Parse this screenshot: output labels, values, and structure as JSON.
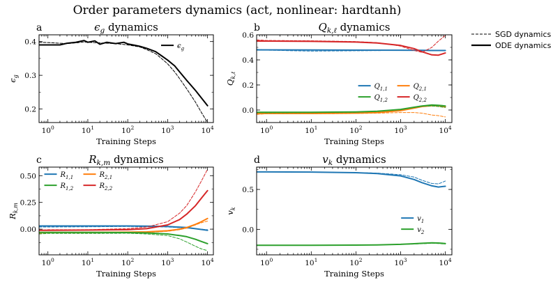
{
  "figure_title": "Order parameters dynamics (act, nonlinear: hardtanh)",
  "legend_top": {
    "dashed": "SGD dynamics",
    "solid": "ODE dynamics"
  },
  "chart_data": [
    {
      "id": "a",
      "type": "line",
      "letter": "a",
      "title": "ϵ_g dynamics",
      "title_parts": {
        "main": "ϵ",
        "sub": "g",
        "rest": " dynamics"
      },
      "xlabel": "Training Steps",
      "ylabel": "ϵ_g",
      "ylabel_parts": {
        "main": "ϵ",
        "sub": "g"
      },
      "xscale": "log",
      "xlim": [
        0.6,
        14000
      ],
      "ylim": [
        0.16,
        0.42
      ],
      "yticks": [
        0.2,
        0.3,
        0.4
      ],
      "ytick_labels": [
        "0.2",
        "0.3",
        "0.4"
      ],
      "xtick_labels": [
        "10^0",
        "10^1",
        "10^2",
        "10^3",
        "10^4"
      ],
      "legend": [
        {
          "label": "ϵ_g",
          "main": "ϵ",
          "sub": "g",
          "color": "#000000"
        }
      ],
      "series": [
        {
          "name": "ϵ_g ODE",
          "style": "solid",
          "color": "#000000",
          "width": 2,
          "x": [
            0.6,
            1,
            2,
            3,
            5,
            8,
            10,
            15,
            20,
            30,
            50,
            80,
            100,
            150,
            200,
            300,
            500,
            700,
            1000,
            1500,
            2000,
            3000,
            5000,
            7000,
            10000
          ],
          "y": [
            0.39,
            0.39,
            0.39,
            0.395,
            0.398,
            0.403,
            0.398,
            0.402,
            0.392,
            0.398,
            0.394,
            0.398,
            0.393,
            0.389,
            0.386,
            0.38,
            0.37,
            0.358,
            0.345,
            0.328,
            0.31,
            0.285,
            0.255,
            0.233,
            0.21
          ]
        },
        {
          "name": "ϵ_g SGD",
          "style": "dashed",
          "color": "#000000",
          "width": 1,
          "x": [
            0.6,
            1,
            2,
            3,
            5,
            8,
            10,
            20,
            50,
            100,
            200,
            300,
            500,
            700,
            1000,
            1500,
            2000,
            3000,
            5000,
            7000,
            10000
          ],
          "y": [
            0.398,
            0.397,
            0.395,
            0.394,
            0.396,
            0.399,
            0.398,
            0.396,
            0.394,
            0.39,
            0.384,
            0.376,
            0.364,
            0.35,
            0.334,
            0.31,
            0.29,
            0.26,
            0.22,
            0.19,
            0.16
          ]
        }
      ]
    },
    {
      "id": "b",
      "type": "line",
      "letter": "b",
      "title": "Q_{k,ℓ} dynamics",
      "title_parts": {
        "main": "Q",
        "sub": "k,ℓ",
        "rest": " dynamics"
      },
      "xlabel": "Training Steps",
      "ylabel": "Q_{k,ℓ}",
      "ylabel_parts": {
        "main": "Q",
        "sub": "k,ℓ"
      },
      "xscale": "log",
      "xlim": [
        0.6,
        14000
      ],
      "ylim": [
        -0.1,
        0.6
      ],
      "yticks": [
        0.0,
        0.2,
        0.4,
        0.6
      ],
      "ytick_labels": [
        "0.0",
        "0.2",
        "0.4",
        "0.6"
      ],
      "xtick_labels": [
        "10^0",
        "10^1",
        "10^2",
        "10^3",
        "10^4"
      ],
      "legend": [
        {
          "label": "Q_{1,1}",
          "main": "Q",
          "sub": "1,1",
          "color": "#1f77b4"
        },
        {
          "label": "Q_{2,1}",
          "main": "Q",
          "sub": "2,1",
          "color": "#ff7f0e"
        },
        {
          "label": "Q_{1,2}",
          "main": "Q",
          "sub": "1,2",
          "color": "#2ca02c"
        },
        {
          "label": "Q_{2,2}",
          "main": "Q",
          "sub": "2,2",
          "color": "#d62728"
        }
      ],
      "series": [
        {
          "name": "Q11 ODE",
          "style": "solid",
          "color": "#1f77b4",
          "width": 2,
          "x": [
            0.6,
            1,
            10,
            100,
            1000,
            3000,
            5000,
            10000
          ],
          "y": [
            0.48,
            0.48,
            0.479,
            0.478,
            0.477,
            0.476,
            0.475,
            0.475
          ]
        },
        {
          "name": "Q11 SGD",
          "style": "dashed",
          "color": "#1f77b4",
          "width": 1,
          "x": [
            0.6,
            1,
            10,
            100,
            1000,
            3000,
            5000,
            10000
          ],
          "y": [
            0.485,
            0.478,
            0.47,
            0.473,
            0.476,
            0.476,
            0.472,
            0.478
          ]
        },
        {
          "name": "Q21 ODE",
          "style": "solid",
          "color": "#ff7f0e",
          "width": 2,
          "x": [
            0.6,
            1,
            10,
            100,
            300,
            1000,
            2000,
            3000,
            5000,
            7000,
            10000
          ],
          "y": [
            -0.028,
            -0.028,
            -0.028,
            -0.025,
            -0.02,
            -0.005,
            0.015,
            0.028,
            0.035,
            0.033,
            0.025
          ]
        },
        {
          "name": "Q21 SGD",
          "style": "dashed",
          "color": "#ff7f0e",
          "width": 1,
          "x": [
            0.6,
            1,
            10,
            100,
            300,
            1000,
            2000,
            3000,
            5000,
            7000,
            10000
          ],
          "y": [
            -0.035,
            -0.03,
            -0.03,
            -0.028,
            -0.025,
            -0.02,
            -0.02,
            -0.025,
            -0.04,
            -0.045,
            -0.055
          ]
        },
        {
          "name": "Q12 ODE",
          "style": "solid",
          "color": "#2ca02c",
          "width": 2,
          "x": [
            0.6,
            1,
            10,
            100,
            300,
            1000,
            2000,
            3000,
            5000,
            7000,
            10000
          ],
          "y": [
            -0.018,
            -0.018,
            -0.018,
            -0.015,
            -0.01,
            0.005,
            0.022,
            0.032,
            0.04,
            0.038,
            0.032
          ]
        },
        {
          "name": "Q12 SGD",
          "style": "dashed",
          "color": "#2ca02c",
          "width": 1,
          "x": [
            0.6,
            1,
            10,
            100,
            300,
            1000,
            2000,
            3000,
            5000,
            7000,
            10000
          ],
          "y": [
            -0.02,
            -0.022,
            -0.02,
            -0.018,
            -0.012,
            0.005,
            0.02,
            0.03,
            0.032,
            0.028,
            0.02
          ]
        },
        {
          "name": "Q22 ODE",
          "style": "solid",
          "color": "#d62728",
          "width": 2,
          "x": [
            0.6,
            1,
            10,
            100,
            300,
            1000,
            2000,
            3000,
            5000,
            7000,
            10000
          ],
          "y": [
            0.55,
            0.55,
            0.548,
            0.542,
            0.535,
            0.515,
            0.49,
            0.465,
            0.44,
            0.438,
            0.455
          ]
        },
        {
          "name": "Q22 SGD",
          "style": "dashed",
          "color": "#d62728",
          "width": 1,
          "x": [
            0.6,
            1,
            10,
            100,
            300,
            1000,
            2000,
            3000,
            5000,
            7000,
            10000
          ],
          "y": [
            0.56,
            0.555,
            0.552,
            0.546,
            0.538,
            0.51,
            0.475,
            0.46,
            0.5,
            0.55,
            0.595
          ]
        }
      ]
    },
    {
      "id": "c",
      "type": "line",
      "letter": "c",
      "title": "R_{k,m} dynamics",
      "title_parts": {
        "main": "R",
        "sub": "k,m",
        "rest": " dynamics"
      },
      "xlabel": "Training Steps",
      "ylabel": "R_{k,m}",
      "ylabel_parts": {
        "main": "R",
        "sub": "k,m"
      },
      "xscale": "log",
      "xlim": [
        0.6,
        14000
      ],
      "ylim": [
        -0.24,
        0.58
      ],
      "yticks": [
        0.0,
        0.25,
        0.5
      ],
      "ytick_labels": [
        "0.00",
        "0.25",
        "0.50"
      ],
      "xtick_labels": [
        "10^0",
        "10^1",
        "10^2",
        "10^3",
        "10^4"
      ],
      "legend": [
        {
          "label": "R_{1,1}",
          "main": "R",
          "sub": "1,1",
          "color": "#1f77b4"
        },
        {
          "label": "R_{2,1}",
          "main": "R",
          "sub": "2,1",
          "color": "#ff7f0e"
        },
        {
          "label": "R_{1,2}",
          "main": "R",
          "sub": "1,2",
          "color": "#2ca02c"
        },
        {
          "label": "R_{2,2}",
          "main": "R",
          "sub": "2,2",
          "color": "#d62728"
        }
      ],
      "series": [
        {
          "name": "R11 ODE",
          "style": "solid",
          "color": "#1f77b4",
          "width": 2,
          "x": [
            0.6,
            1,
            10,
            100,
            300,
            1000,
            3000,
            10000
          ],
          "y": [
            0.03,
            0.03,
            0.03,
            0.03,
            0.029,
            0.025,
            0.015,
            -0.01
          ]
        },
        {
          "name": "R11 SGD",
          "style": "dashed",
          "color": "#1f77b4",
          "width": 1,
          "x": [
            0.6,
            1,
            10,
            100,
            300,
            1000,
            3000,
            10000
          ],
          "y": [
            0.02,
            0.02,
            0.022,
            0.025,
            0.022,
            0.02,
            0.01,
            -0.005
          ]
        },
        {
          "name": "R21 ODE",
          "style": "solid",
          "color": "#ff7f0e",
          "width": 2,
          "x": [
            0.6,
            1,
            10,
            100,
            300,
            1000,
            2000,
            3000,
            5000,
            7000,
            10000
          ],
          "y": [
            -0.03,
            -0.03,
            -0.03,
            -0.028,
            -0.025,
            -0.015,
            0.0,
            0.015,
            0.045,
            0.07,
            0.1
          ]
        },
        {
          "name": "R21 SGD",
          "style": "dashed",
          "color": "#ff7f0e",
          "width": 1,
          "x": [
            0.6,
            1,
            10,
            100,
            300,
            1000,
            2000,
            3000,
            5000,
            7000,
            10000
          ],
          "y": [
            -0.04,
            -0.035,
            -0.035,
            -0.032,
            -0.03,
            -0.02,
            -0.005,
            0.01,
            0.04,
            0.06,
            0.075
          ]
        },
        {
          "name": "R12 ODE",
          "style": "solid",
          "color": "#2ca02c",
          "width": 2,
          "x": [
            0.6,
            1,
            10,
            100,
            300,
            1000,
            2000,
            3000,
            5000,
            7000,
            10000
          ],
          "y": [
            -0.03,
            -0.03,
            -0.03,
            -0.032,
            -0.035,
            -0.045,
            -0.06,
            -0.07,
            -0.095,
            -0.115,
            -0.135
          ]
        },
        {
          "name": "R12 SGD",
          "style": "dashed",
          "color": "#2ca02c",
          "width": 1,
          "x": [
            0.6,
            1,
            10,
            100,
            300,
            1000,
            2000,
            3000,
            5000,
            7000,
            10000
          ],
          "y": [
            -0.045,
            -0.04,
            -0.04,
            -0.038,
            -0.045,
            -0.06,
            -0.09,
            -0.12,
            -0.16,
            -0.185,
            -0.2
          ]
        },
        {
          "name": "R22 ODE",
          "style": "solid",
          "color": "#d62728",
          "width": 2,
          "x": [
            0.6,
            1,
            10,
            100,
            300,
            1000,
            2000,
            3000,
            5000,
            7000,
            10000
          ],
          "y": [
            -0.01,
            -0.01,
            -0.008,
            -0.005,
            0.005,
            0.04,
            0.09,
            0.14,
            0.22,
            0.29,
            0.36
          ]
        },
        {
          "name": "R22 SGD",
          "style": "dashed",
          "color": "#d62728",
          "width": 1,
          "x": [
            0.6,
            1,
            10,
            100,
            300,
            1000,
            2000,
            3000,
            5000,
            7000,
            10000
          ],
          "y": [
            -0.01,
            -0.005,
            -0.005,
            0.005,
            0.02,
            0.07,
            0.15,
            0.22,
            0.35,
            0.45,
            0.56
          ]
        }
      ]
    },
    {
      "id": "d",
      "type": "line",
      "letter": "d",
      "title": "v_k dynamics",
      "title_parts": {
        "main": "v",
        "sub": "k",
        "rest": " dynamics"
      },
      "xlabel": "Training Steps",
      "ylabel": "v_k",
      "ylabel_parts": {
        "main": "v",
        "sub": "k"
      },
      "xscale": "log",
      "xlim": [
        0.6,
        14000
      ],
      "ylim": [
        -0.32,
        0.78
      ],
      "yticks": [
        0.0,
        0.5
      ],
      "ytick_labels": [
        "0.0",
        "0.5"
      ],
      "xtick_labels": [
        "10^0",
        "10^1",
        "10^2",
        "10^3",
        "10^4"
      ],
      "legend": [
        {
          "label": "v_1",
          "main": "v",
          "sub": "1",
          "color": "#1f77b4"
        },
        {
          "label": "v_2",
          "main": "v",
          "sub": "2",
          "color": "#2ca02c"
        }
      ],
      "series": [
        {
          "name": "v1 ODE",
          "style": "solid",
          "color": "#1f77b4",
          "width": 2,
          "x": [
            0.6,
            1,
            10,
            100,
            300,
            1000,
            2000,
            3000,
            5000,
            7000,
            10000
          ],
          "y": [
            0.72,
            0.72,
            0.718,
            0.71,
            0.7,
            0.67,
            0.625,
            0.585,
            0.545,
            0.53,
            0.54
          ]
        },
        {
          "name": "v1 SGD",
          "style": "dashed",
          "color": "#1f77b4",
          "width": 1,
          "x": [
            0.6,
            1,
            10,
            100,
            300,
            1000,
            2000,
            3000,
            5000,
            7000,
            10000
          ],
          "y": [
            0.72,
            0.72,
            0.718,
            0.712,
            0.705,
            0.685,
            0.655,
            0.615,
            0.575,
            0.57,
            0.605
          ]
        },
        {
          "name": "v2 ODE",
          "style": "solid",
          "color": "#2ca02c",
          "width": 2,
          "x": [
            0.6,
            1,
            10,
            100,
            300,
            1000,
            2000,
            3000,
            5000,
            7000,
            10000
          ],
          "y": [
            -0.2,
            -0.2,
            -0.2,
            -0.198,
            -0.195,
            -0.188,
            -0.18,
            -0.175,
            -0.17,
            -0.172,
            -0.178
          ]
        },
        {
          "name": "v2 SGD",
          "style": "dashed",
          "color": "#2ca02c",
          "width": 1,
          "x": [
            0.6,
            1,
            10,
            100,
            300,
            1000,
            2000,
            3000,
            5000,
            7000,
            10000
          ],
          "y": [
            -0.2,
            -0.2,
            -0.2,
            -0.198,
            -0.196,
            -0.19,
            -0.185,
            -0.18,
            -0.175,
            -0.178,
            -0.185
          ]
        }
      ]
    }
  ]
}
